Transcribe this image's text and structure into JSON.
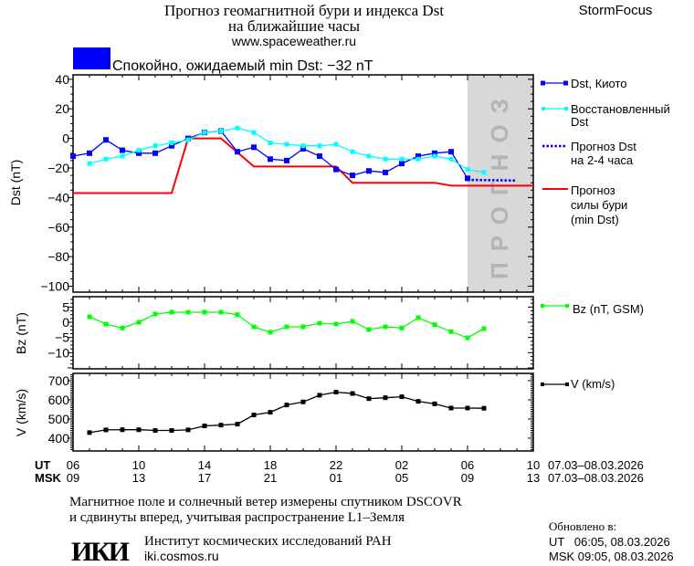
{
  "header": {
    "title_line1": "Прогноз геомагнитной бури и индекса Dst",
    "title_line2": "на ближайшие часы",
    "url": "www.spaceweather.ru",
    "brand": "StormFocus"
  },
  "status": {
    "color": "#0000ff",
    "text": "Спокойно, ожидаемый min Dst: −32 nT"
  },
  "legend": {
    "dst_kyoto": "Dst, Киото",
    "restored_1": "Восстановленный",
    "restored_2": "Dst",
    "forecast_1": "Прогноз Dst",
    "forecast_2": "на 2-4 часа",
    "storm_1": "Прогноз",
    "storm_2": "силы бури",
    "storm_3": "(min Dst)",
    "bz": "Bz (nT, GSM)",
    "v": "V (km/s)"
  },
  "time_axis": {
    "ut_label": "UT",
    "msk_label": "MSK",
    "ut_ticks": [
      "06",
      "10",
      "14",
      "18",
      "22",
      "02",
      "06",
      "10"
    ],
    "msk_ticks": [
      "09",
      "13",
      "17",
      "21",
      "01",
      "05",
      "09",
      "13"
    ],
    "date_range": "07.03–08.03.2026",
    "start": "07.03 06:00",
    "end": "08.03 10:00"
  },
  "footer": {
    "note_1": "Магнитное поле и солнечный ветер измерены спутником DSCOVR",
    "note_2": "и сдвинуты вперед, учитывая распространение L1–Земля",
    "institute": "Институт космических исследований РАН",
    "institute_url": "iki.cosmos.ru",
    "logo_text": "ИКИ",
    "updated_label": "Обновлено в:",
    "updated_ut": "UT   06:05, 08.03.2026",
    "updated_msk": "MSK 09:05, 08.03.2026"
  },
  "chart_data": [
    {
      "type": "line",
      "ylabel": "Dst (nT)",
      "ylim": [
        -104,
        43
      ],
      "yticks": [
        40,
        20,
        0,
        -20,
        -40,
        -60,
        -80,
        -100
      ],
      "forecast_region": {
        "from": "08.03 06:00",
        "to": "08.03 10:00",
        "label": "ПРОГНОЗ",
        "color": "#d8d8d8"
      },
      "series": [
        {
          "name": "Dst, Киото",
          "color": "#0000ff",
          "style": "line-markers",
          "points": [
            [
              "07.03 06:00",
              -12
            ],
            [
              "07.03 07:00",
              -10
            ],
            [
              "07.03 08:00",
              -1
            ],
            [
              "07.03 09:00",
              -8
            ],
            [
              "07.03 10:00",
              -10
            ],
            [
              "07.03 11:00",
              -10
            ],
            [
              "07.03 12:00",
              -5
            ],
            [
              "07.03 13:00",
              0
            ],
            [
              "07.03 14:00",
              4
            ],
            [
              "07.03 15:00",
              5
            ],
            [
              "07.03 16:00",
              -9
            ],
            [
              "07.03 17:00",
              -6
            ],
            [
              "07.03 18:00",
              -14
            ],
            [
              "07.03 19:00",
              -15
            ],
            [
              "07.03 20:00",
              -7
            ],
            [
              "07.03 21:00",
              -12
            ],
            [
              "07.03 22:00",
              -21
            ],
            [
              "07.03 23:00",
              -25
            ],
            [
              "08.03 00:00",
              -22
            ],
            [
              "08.03 01:00",
              -23
            ],
            [
              "08.03 02:00",
              -17
            ],
            [
              "08.03 03:00",
              -12
            ],
            [
              "08.03 04:00",
              -10
            ],
            [
              "08.03 05:00",
              -9
            ],
            [
              "08.03 06:00",
              -27
            ]
          ]
        },
        {
          "name": "Восстановленный Dst",
          "color": "#00ffff",
          "style": "line-markers-small",
          "points": [
            [
              "07.03 07:00",
              -17
            ],
            [
              "07.03 08:00",
              -14
            ],
            [
              "07.03 09:00",
              -12
            ],
            [
              "07.03 10:00",
              -8
            ],
            [
              "07.03 11:00",
              -5
            ],
            [
              "07.03 12:00",
              -3
            ],
            [
              "07.03 13:00",
              -1
            ],
            [
              "07.03 14:00",
              4
            ],
            [
              "07.03 15:00",
              5
            ],
            [
              "07.03 16:00",
              7
            ],
            [
              "07.03 17:00",
              4
            ],
            [
              "07.03 18:00",
              -3
            ],
            [
              "07.03 19:00",
              -4
            ],
            [
              "07.03 20:00",
              -5
            ],
            [
              "07.03 21:00",
              -5
            ],
            [
              "07.03 22:00",
              -4
            ],
            [
              "07.03 23:00",
              -9
            ],
            [
              "08.03 00:00",
              -12
            ],
            [
              "08.03 01:00",
              -14
            ],
            [
              "08.03 02:00",
              -14
            ],
            [
              "08.03 03:00",
              -14
            ],
            [
              "08.03 04:00",
              -12
            ],
            [
              "08.03 05:00",
              -14
            ],
            [
              "08.03 06:00",
              -21
            ],
            [
              "08.03 07:00",
              -23
            ]
          ]
        },
        {
          "name": "Прогноз Dst на 2-4 часа",
          "color": "#0000ff",
          "style": "dotted",
          "points": [
            [
              "08.03 06:00",
              -28
            ],
            [
              "08.03 09:00",
              -28.5
            ]
          ]
        },
        {
          "name": "Прогноз силы бури (min Dst)",
          "color": "#ff0000",
          "style": "thick-line",
          "points": [
            [
              "07.03 06:00",
              -37
            ],
            [
              "07.03 12:00",
              -37
            ],
            [
              "07.03 13:00",
              0
            ],
            [
              "07.03 15:00",
              0
            ],
            [
              "07.03 17:00",
              -19
            ],
            [
              "07.03 22:00",
              -19
            ],
            [
              "07.03 23:00",
              -30
            ],
            [
              "08.03 04:00",
              -30
            ],
            [
              "08.03 05:00",
              -32
            ],
            [
              "08.03 10:00",
              -32
            ]
          ]
        }
      ]
    },
    {
      "type": "line",
      "ylabel": "Bz (nT)",
      "ylim": [
        -15.3,
        8.4
      ],
      "yticks": [
        5,
        0,
        -5,
        -10
      ],
      "series": [
        {
          "name": "Bz (nT, GSM)",
          "color": "#00ff00",
          "style": "line-markers-small",
          "points": [
            [
              "07.03 07:00",
              1.8
            ],
            [
              "07.03 08:00",
              -0.6
            ],
            [
              "07.03 09:00",
              -1.9
            ],
            [
              "07.03 10:00",
              0
            ],
            [
              "07.03 11:00",
              2.7
            ],
            [
              "07.03 12:00",
              3.3
            ],
            [
              "07.03 13:00",
              3.3
            ],
            [
              "07.03 14:00",
              3.3
            ],
            [
              "07.03 15:00",
              3.3
            ],
            [
              "07.03 16:00",
              2.5
            ],
            [
              "07.03 17:00",
              -1.5
            ],
            [
              "07.03 18:00",
              -3.3
            ],
            [
              "07.03 19:00",
              -1.5
            ],
            [
              "07.03 20:00",
              -1.5
            ],
            [
              "07.03 21:00",
              -0.3
            ],
            [
              "07.03 22:00",
              -0.6
            ],
            [
              "07.03 23:00",
              0.3
            ],
            [
              "08.03 00:00",
              -2.4
            ],
            [
              "08.03 01:00",
              -1.5
            ],
            [
              "08.03 02:00",
              -1.9
            ],
            [
              "08.03 03:00",
              1.5
            ],
            [
              "08.03 04:00",
              -0.8
            ],
            [
              "08.03 05:00",
              -3.1
            ],
            [
              "08.03 06:00",
              -5.1
            ],
            [
              "08.03 07:00",
              -2.1
            ]
          ]
        }
      ]
    },
    {
      "type": "line",
      "ylabel": "V (km/s)",
      "ylim": [
        333,
        738
      ],
      "yticks": [
        700,
        600,
        500,
        400
      ],
      "series": [
        {
          "name": "V (km/s)",
          "color": "#000000",
          "style": "line-markers-small",
          "points": [
            [
              "07.03 07:00",
              429
            ],
            [
              "07.03 08:00",
              443
            ],
            [
              "07.03 09:00",
              444
            ],
            [
              "07.03 10:00",
              444
            ],
            [
              "07.03 11:00",
              440
            ],
            [
              "07.03 12:00",
              440
            ],
            [
              "07.03 13:00",
              443
            ],
            [
              "07.03 14:00",
              464
            ],
            [
              "07.03 15:00",
              468
            ],
            [
              "07.03 16:00",
              473
            ],
            [
              "07.03 17:00",
              521
            ],
            [
              "07.03 18:00",
              535
            ],
            [
              "07.03 19:00",
              573
            ],
            [
              "07.03 20:00",
              589
            ],
            [
              "07.03 21:00",
              624
            ],
            [
              "07.03 22:00",
              640
            ],
            [
              "07.03 23:00",
              633
            ],
            [
              "08.03 00:00",
              606
            ],
            [
              "08.03 01:00",
              611
            ],
            [
              "08.03 02:00",
              616
            ],
            [
              "08.03 03:00",
              592
            ],
            [
              "08.03 04:00",
              579
            ],
            [
              "08.03 05:00",
              557
            ],
            [
              "08.03 06:00",
              557
            ],
            [
              "08.03 07:00",
              556
            ]
          ]
        }
      ]
    }
  ]
}
